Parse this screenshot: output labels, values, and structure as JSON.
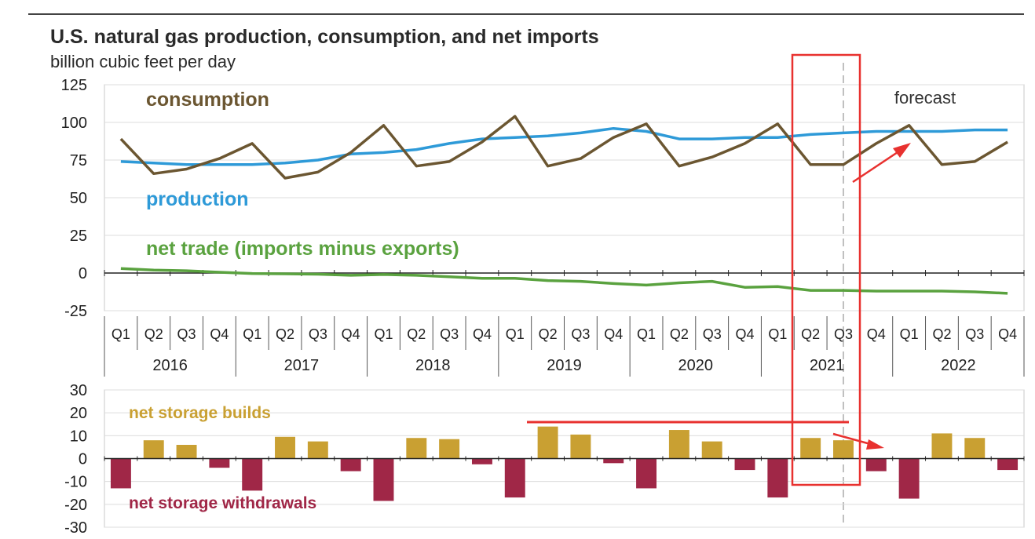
{
  "title": "U.S. natural gas production, consumption, and net imports",
  "subtitle": "billion cubic feet per day",
  "colors": {
    "consumption": "#6b5631",
    "production": "#2e9ad8",
    "net_trade": "#5aa23f",
    "builds": "#c9a032",
    "withdrawals": "#a02747",
    "annotation": "#e8312f"
  },
  "chart_data": [
    {
      "type": "line",
      "ylim": [
        -25,
        125
      ],
      "yticks": [
        -25,
        0,
        25,
        50,
        75,
        100,
        125
      ],
      "grid": true,
      "quarters": [
        "Q1",
        "Q2",
        "Q3",
        "Q4",
        "Q1",
        "Q2",
        "Q3",
        "Q4",
        "Q1",
        "Q2",
        "Q3",
        "Q4",
        "Q1",
        "Q2",
        "Q3",
        "Q4",
        "Q1",
        "Q2",
        "Q3",
        "Q4",
        "Q1",
        "Q2",
        "Q3",
        "Q4",
        "Q1",
        "Q2",
        "Q3",
        "Q4"
      ],
      "years": [
        "2016",
        "2017",
        "2018",
        "2019",
        "2020",
        "2021",
        "2022"
      ],
      "forecast_label": "forecast",
      "series": [
        {
          "name": "consumption",
          "color_key": "consumption",
          "values": [
            89,
            66,
            69,
            76,
            86,
            63,
            67,
            80,
            98,
            71,
            74,
            87,
            104,
            71,
            76,
            90,
            99,
            71,
            77,
            86,
            99,
            72,
            72,
            86,
            98,
            72,
            74,
            87
          ]
        },
        {
          "name": "production",
          "color_key": "production",
          "values": [
            74,
            73,
            72,
            72,
            72,
            73,
            75,
            79,
            80,
            82,
            86,
            89,
            90,
            91,
            93,
            96,
            94,
            89,
            89,
            90,
            90,
            92,
            93,
            94,
            94,
            94,
            95,
            95
          ]
        },
        {
          "name": "net trade (imports minus exports)",
          "color_key": "net_trade",
          "values": [
            3,
            2,
            1.5,
            0.5,
            -0.3,
            -0.5,
            -0.8,
            -1.5,
            -1,
            -1.5,
            -2.5,
            -3.5,
            -3.5,
            -5,
            -5.5,
            -7,
            -8,
            -6.5,
            -5.5,
            -9.5,
            -9,
            -11.5,
            -11.5,
            -12,
            -12,
            -12,
            -12.5,
            -13.5
          ]
        }
      ]
    },
    {
      "type": "bar",
      "ylim": [
        -30,
        30
      ],
      "yticks": [
        -30,
        -20,
        -10,
        0,
        10,
        20,
        30
      ],
      "grid": true,
      "labels": {
        "builds": "net storage builds",
        "withdrawals": "net storage withdrawals"
      },
      "values": [
        -13,
        8,
        6,
        -4,
        -14,
        9.5,
        7.5,
        -5.5,
        -18.5,
        9,
        8.5,
        -2.5,
        -17,
        14,
        10.5,
        -2,
        -13,
        12.5,
        7.5,
        -5,
        -17,
        9,
        8,
        -5.5,
        -17.5,
        11,
        9,
        -5
      ]
    }
  ]
}
